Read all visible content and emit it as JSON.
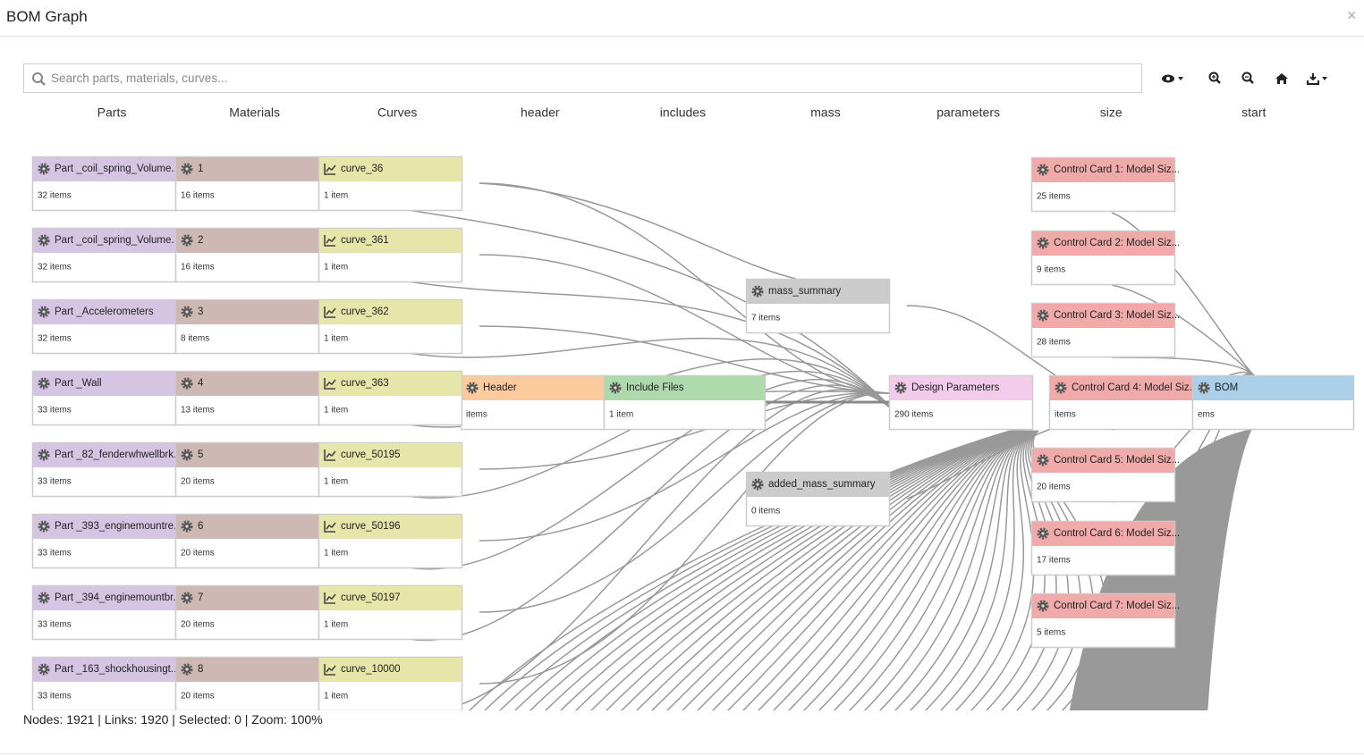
{
  "dialog": {
    "title": "BOM Graph",
    "close": "×"
  },
  "search": {
    "placeholder": "Search parts, materials, curves..."
  },
  "columns": [
    {
      "heading": "Parts",
      "nodes": [
        {
          "title": "Part _coil_spring_Volume...",
          "count": "32 items"
        },
        {
          "title": "Part _coil_spring_Volume...",
          "count": "32 items"
        },
        {
          "title": "Part _Accelerometers",
          "count": "32 items"
        },
        {
          "title": "Part _Wall",
          "count": "33 items"
        },
        {
          "title": "Part _82_fenderwhwellbrk...",
          "count": "33 items"
        },
        {
          "title": "Part _393_enginemountre...",
          "count": "33 items"
        },
        {
          "title": "Part _394_enginemountbr...",
          "count": "33 items"
        },
        {
          "title": "Part _163_shockhousingt...",
          "count": "33 items"
        }
      ]
    },
    {
      "heading": "Materials",
      "nodes": [
        {
          "title": "1",
          "count": "16 items"
        },
        {
          "title": "2",
          "count": "16 items"
        },
        {
          "title": "3",
          "count": "8 items"
        },
        {
          "title": "4",
          "count": "13 items"
        },
        {
          "title": "5",
          "count": "20 items"
        },
        {
          "title": "6",
          "count": "20 items"
        },
        {
          "title": "7",
          "count": "20 items"
        },
        {
          "title": "8",
          "count": "20 items"
        }
      ]
    },
    {
      "heading": "Curves",
      "nodes": [
        {
          "title": "curve_36",
          "count": "1 item"
        },
        {
          "title": "curve_361",
          "count": "1 item"
        },
        {
          "title": "curve_362",
          "count": "1 item"
        },
        {
          "title": "curve_363",
          "count": "1 item"
        },
        {
          "title": "curve_50195",
          "count": "1 item"
        },
        {
          "title": "curve_50196",
          "count": "1 item"
        },
        {
          "title": "curve_50197",
          "count": "1 item"
        },
        {
          "title": "curve_10000",
          "count": "1 item"
        }
      ]
    },
    {
      "heading": "header",
      "nodes": [
        {
          "title": "Header",
          "count": "items"
        }
      ]
    },
    {
      "heading": "includes",
      "nodes": [
        {
          "title": "Include Files",
          "count": "1 item"
        }
      ]
    },
    {
      "heading": "mass",
      "nodes": [
        {
          "title": "mass_summary",
          "count": "7 items"
        },
        {
          "title": "added_mass_summary",
          "count": "0 items"
        }
      ]
    },
    {
      "heading": "parameters",
      "nodes": [
        {
          "title": "Design Parameters",
          "count": "290 items"
        }
      ]
    },
    {
      "heading": "size",
      "nodes": [
        {
          "title": "Control Card 1: Model Siz...",
          "count": "25 items"
        },
        {
          "title": "Control Card 2: Model Siz...",
          "count": "9 items"
        },
        {
          "title": "Control Card 3: Model Siz...",
          "count": "28 items"
        },
        {
          "title": "Control Card 4: Model Siz...",
          "count": "items"
        },
        {
          "title": "Control Card 5: Model Siz...",
          "count": "20 items"
        },
        {
          "title": "Control Card 6: Model Siz...",
          "count": "17 items"
        },
        {
          "title": "Control Card 7: Model Siz...",
          "count": "5 items"
        }
      ]
    },
    {
      "heading": "start",
      "nodes": [
        {
          "title": "BOM",
          "count": "ems"
        }
      ]
    }
  ],
  "status": "Nodes: 1921 | Links: 1920 | Selected: 0 | Zoom: 100%"
}
